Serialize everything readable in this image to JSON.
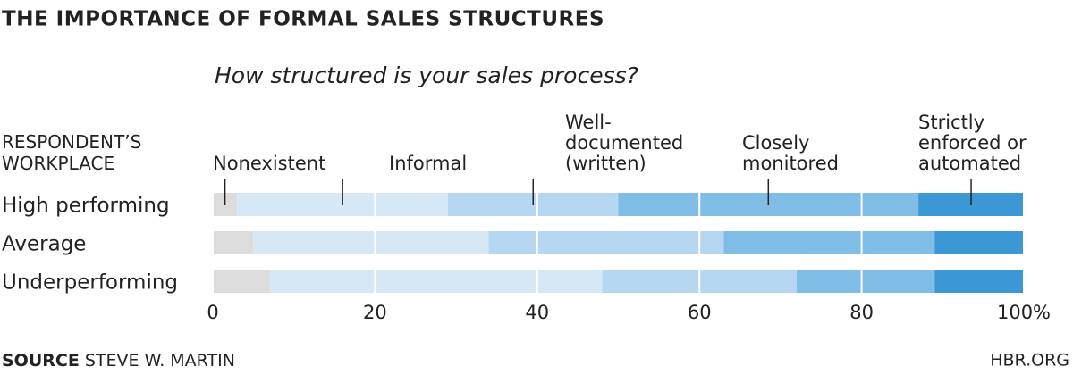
{
  "chart_data": {
    "type": "stacked-bar",
    "title": "THE IMPORTANCE OF FORMAL SALES STRUCTURES",
    "subtitle": "How structured is your sales process?",
    "y_label": "RESPONDENT’S WORKPLACE",
    "categories": [
      "High performing",
      "Average",
      "Underperforming"
    ],
    "series": [
      {
        "name": "Nonexistent",
        "color": "#dcdcdc",
        "values": [
          3,
          5,
          7
        ]
      },
      {
        "name": "Informal",
        "color": "#d6e8f5",
        "values": [
          26,
          29,
          41
        ]
      },
      {
        "name": "Well-documented (written)",
        "color": "#b6d7f1",
        "values": [
          21,
          29,
          24
        ]
      },
      {
        "name": "Closely monitored",
        "color": "#80bde6",
        "values": [
          37,
          26,
          17
        ]
      },
      {
        "name": "Strictly enforced or automated",
        "color": "#3b98d4",
        "values": [
          13,
          11,
          11
        ]
      }
    ],
    "xlim": [
      0,
      100
    ],
    "xticks": [
      0,
      20,
      40,
      60,
      80,
      {
        "value": 100,
        "label": "100%"
      }
    ],
    "grid": true,
    "source_label": "SOURCE",
    "source": "STEVE W. MARTIN",
    "brand": "HBR.ORG"
  }
}
